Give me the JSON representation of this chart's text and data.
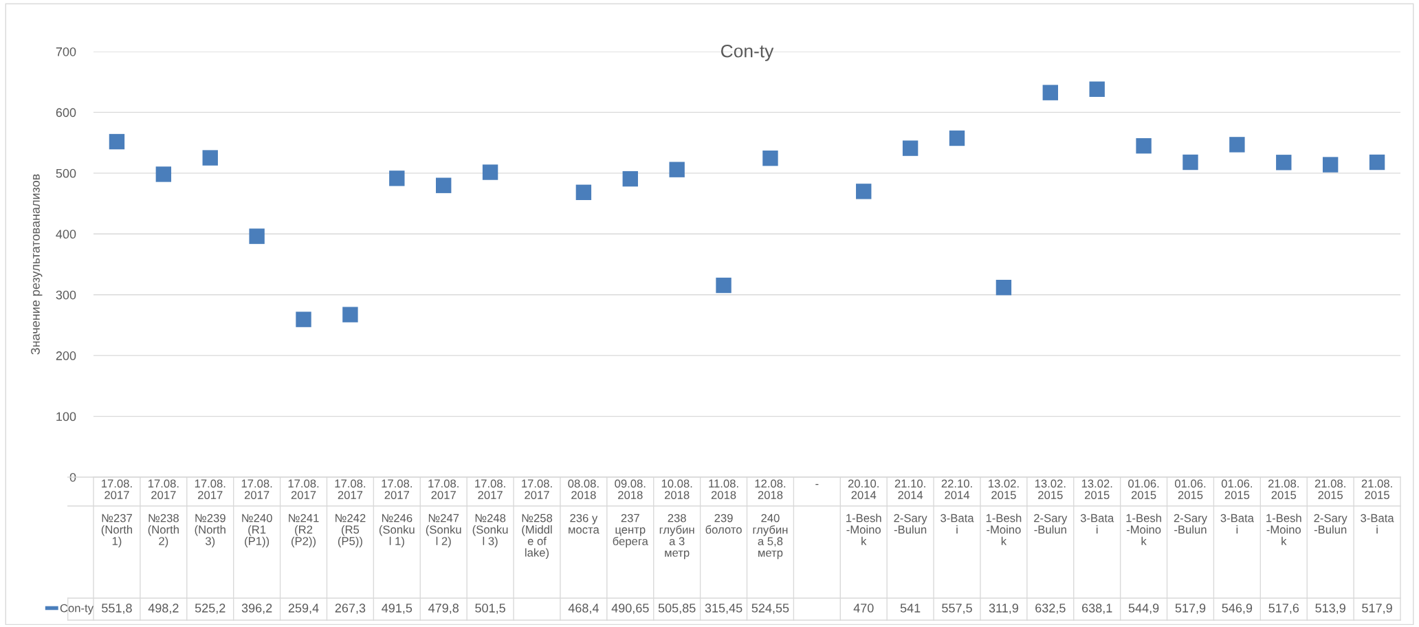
{
  "chart_data": {
    "type": "scatter",
    "title": "Con-ty",
    "ylabel": "Значение результатованализов",
    "categories": [
      "17.08.2017\n№237 (North 1)",
      "17.08.2017\n№238 (North 2)",
      "17.08.2017\n№239 (North 3)",
      "17.08.2017\n№240 (R1 (P1))",
      "17.08.2017\n№241 (R2 (P2))",
      "17.08.2017\n№242 (R5 (P5))",
      "17.08.2017\n№246 (Sonkul 1)",
      "17.08.2017\n№247 (Sonkul 2)",
      "17.08.2017\n№248 (Sonkul 3)",
      "17.08.2017\n№258 (Middle of lake)",
      "08.08.2018\n236 у моста",
      "09.08.2018\n237 центр берега",
      "10.08.2018\n238 глубина 3 метр",
      "11.08.2018\n239 болото",
      "12.08.2018\n240 глубина 5,8 метр",
      "-",
      "20.10.2014\n1-Besh-Moinok",
      "21.10.2014\n2-Sary-Bulun",
      "22.10.2014\n3-Batai",
      "13.02.2015\n1-Besh-Moinok",
      "13.02.2015\n2-Sary-Bulun",
      "13.02.2015\n3-Batai",
      "01.06.2015\n1-Besh-Moinok",
      "01.06.2015\n2-Sary-Bulun",
      "01.06.2015\n3-Batai",
      "21.08.2015\n1-Besh-Moinok",
      "21.08.2015\n2-Sary-Bulun",
      "21.08.2015\n3-Batai"
    ],
    "series": [
      {
        "name": "Con-ty",
        "color": "#4a7ebb",
        "values": [
          551.8,
          498.2,
          525.2,
          396.2,
          259.4,
          267.3,
          491.5,
          479.8,
          501.5,
          null,
          468.4,
          490.65,
          505.85,
          315.45,
          524.55,
          null,
          470,
          541,
          557.5,
          311.9,
          632.5,
          638.1,
          544.9,
          517.9,
          546.9,
          517.6,
          513.9,
          517.9
        ],
        "value_labels": [
          "551,8",
          "498,2",
          "525,2",
          "396,2",
          "259,4",
          "267,3",
          "491,5",
          "479,8",
          "501,5",
          null,
          "468,4",
          "490,65",
          "505,85",
          "315,45",
          "524,55",
          null,
          "470",
          "541",
          "557,5",
          "311,9",
          "632,5",
          "638,1",
          "544,9",
          "517,9",
          "546,9",
          "517,6",
          "513,9",
          "517,9"
        ]
      }
    ],
    "ylim": [
      0,
      700
    ],
    "yticks": [
      0,
      100,
      200,
      300,
      400,
      500,
      600,
      700
    ],
    "grid": "y",
    "marker": "square",
    "legend": "bottom"
  }
}
